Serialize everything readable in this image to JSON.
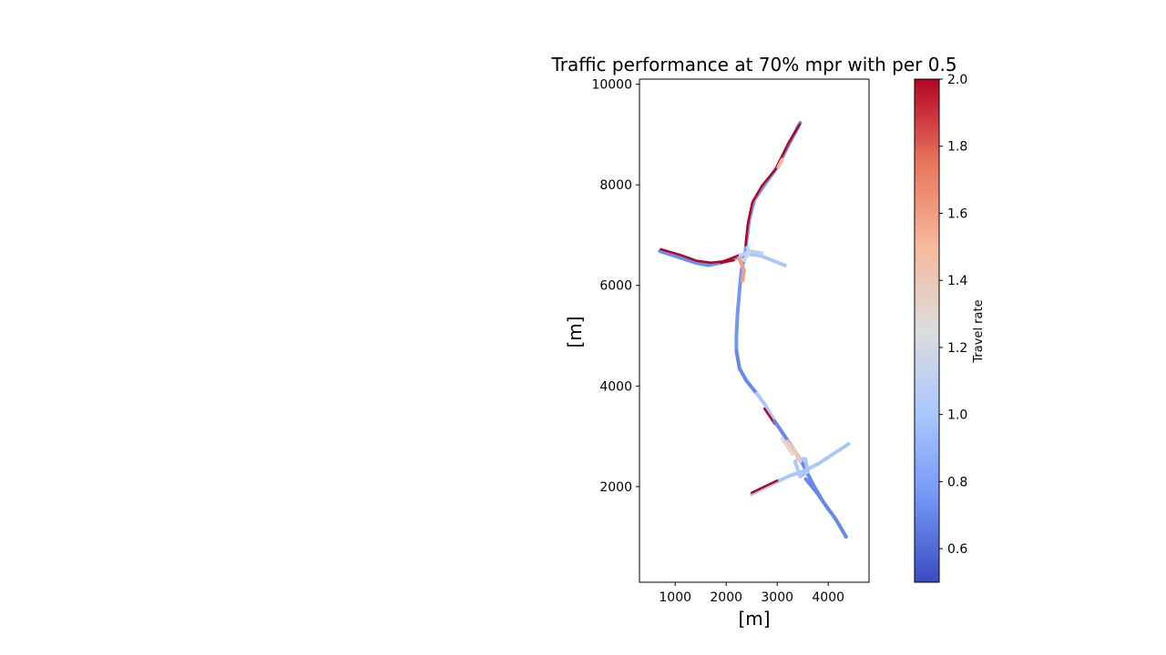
{
  "chart_data": {
    "type": "line",
    "title": "Traffic performance at 70% mpr with per 0.5",
    "xlabel": "[m]",
    "ylabel": "[m]",
    "xlim": [
      300,
      4800
    ],
    "ylim": [
      100,
      10100
    ],
    "xticks": [
      1000,
      2000,
      3000,
      4000
    ],
    "yticks": [
      2000,
      4000,
      6000,
      8000,
      10000
    ],
    "grid": false,
    "colorbar": {
      "label": "Travel rate",
      "range": [
        0.5,
        2.0
      ],
      "ticks": [
        0.6,
        0.8,
        1.0,
        1.2,
        1.4,
        1.6,
        1.8,
        2.0
      ],
      "tick_labels": [
        "0.6",
        "0.8",
        "1.0",
        "1.2",
        "1.4",
        "1.6",
        "1.8",
        "2.0"
      ],
      "colormap": "coolwarm",
      "colors": [
        "#3b4cc0",
        "#7396f5",
        "#aac7fd",
        "#dcdddd",
        "#f7b89c",
        "#e8765c",
        "#b40426"
      ]
    },
    "segments": [
      {
        "points": [
          [
            3450,
            9230
          ],
          [
            3250,
            8850
          ],
          [
            3000,
            8350
          ]
        ],
        "rate": 0.7
      },
      {
        "points": [
          [
            3000,
            8350
          ],
          [
            2750,
            8000
          ],
          [
            2550,
            7700
          ]
        ],
        "rate": 0.75
      },
      {
        "points": [
          [
            2550,
            7700
          ],
          [
            2450,
            7300
          ],
          [
            2400,
            6900
          ],
          [
            2370,
            6600
          ]
        ],
        "rate": 0.75
      },
      {
        "points": [
          [
            3440,
            9200
          ],
          [
            3220,
            8830
          ],
          [
            2960,
            8300
          ],
          [
            2700,
            7980
          ],
          [
            2510,
            7650
          ],
          [
            2420,
            7200
          ],
          [
            2380,
            6800
          ]
        ],
        "rate": 2.0
      },
      {
        "points": [
          [
            3100,
            8500
          ],
          [
            3020,
            8350
          ]
        ],
        "rate": 1.5
      },
      {
        "points": [
          [
            2370,
            6600
          ],
          [
            2300,
            6300
          ],
          [
            2260,
            5900
          ],
          [
            2220,
            5400
          ],
          [
            2200,
            5000
          ],
          [
            2200,
            4700
          ]
        ],
        "rate": 0.75
      },
      {
        "points": [
          [
            2200,
            4700
          ],
          [
            2260,
            4350
          ],
          [
            2400,
            4100
          ],
          [
            2600,
            3850
          ]
        ],
        "rate": 0.7
      },
      {
        "points": [
          [
            2600,
            3850
          ],
          [
            2780,
            3600
          ],
          [
            2950,
            3300
          ]
        ],
        "rate": 1.0
      },
      {
        "points": [
          [
            2750,
            3550
          ],
          [
            2950,
            3250
          ]
        ],
        "rate": 2.0
      },
      {
        "points": [
          [
            2950,
            3300
          ],
          [
            3150,
            3000
          ],
          [
            3350,
            2700
          ],
          [
            3500,
            2450
          ]
        ],
        "rate": 0.7
      },
      {
        "points": [
          [
            3100,
            2950
          ],
          [
            3300,
            2650
          ]
        ],
        "rate": 1.3
      },
      {
        "points": [
          [
            3500,
            2450
          ],
          [
            3700,
            2050
          ],
          [
            3900,
            1700
          ],
          [
            4150,
            1350
          ],
          [
            4350,
            1000
          ]
        ],
        "rate": 0.7
      },
      {
        "points": [
          [
            3560,
            2150
          ],
          [
            3800,
            1850
          ],
          [
            4000,
            1550
          ]
        ],
        "rate": 0.7
      },
      {
        "points": [
          [
            700,
            6680
          ],
          [
            1100,
            6550
          ],
          [
            1400,
            6450
          ],
          [
            1650,
            6400
          ],
          [
            1900,
            6450
          ],
          [
            2200,
            6550
          ],
          [
            2350,
            6600
          ]
        ],
        "rate": 0.72
      },
      {
        "points": [
          [
            720,
            6720
          ],
          [
            1120,
            6600
          ],
          [
            1420,
            6490
          ],
          [
            1700,
            6450
          ],
          [
            1950,
            6480
          ],
          [
            2250,
            6600
          ]
        ],
        "rate": 2.0
      },
      {
        "points": [
          [
            1900,
            6450
          ],
          [
            2150,
            6500
          ]
        ],
        "rate": 2.0
      },
      {
        "points": [
          [
            2400,
            6620
          ],
          [
            2650,
            6600
          ],
          [
            2850,
            6520
          ],
          [
            3150,
            6400
          ]
        ],
        "rate": 1.0
      },
      {
        "points": [
          [
            2250,
            6550
          ],
          [
            2350,
            6300
          ],
          [
            2320,
            6100
          ]
        ],
        "rate": 1.6
      },
      {
        "points": [
          [
            2280,
            6600
          ],
          [
            2480,
            6680
          ],
          [
            2700,
            6640
          ]
        ],
        "rate": 1.1
      },
      {
        "points": [
          [
            2350,
            6500
          ],
          [
            2450,
            6650
          ],
          [
            2420,
            6750
          ]
        ],
        "rate": 1.15
      },
      {
        "points": [
          [
            2500,
            1850
          ],
          [
            2750,
            1980
          ],
          [
            3000,
            2100
          ],
          [
            3250,
            2220
          ],
          [
            3500,
            2300
          ]
        ],
        "rate": 1.0
      },
      {
        "points": [
          [
            2500,
            1880
          ],
          [
            2750,
            2000
          ],
          [
            3000,
            2120
          ]
        ],
        "rate": 2.0
      },
      {
        "points": [
          [
            3500,
            2300
          ],
          [
            3800,
            2450
          ],
          [
            4100,
            2650
          ],
          [
            4400,
            2850
          ]
        ],
        "rate": 1.0
      },
      {
        "points": [
          [
            3350,
            2500
          ],
          [
            3450,
            2200
          ],
          [
            3600,
            2300
          ],
          [
            3550,
            2550
          ],
          [
            3400,
            2550
          ]
        ],
        "rate": 1.0
      },
      {
        "points": [
          [
            3200,
            2900
          ],
          [
            3350,
            2700
          ],
          [
            3450,
            2500
          ]
        ],
        "rate": 1.4
      }
    ]
  }
}
